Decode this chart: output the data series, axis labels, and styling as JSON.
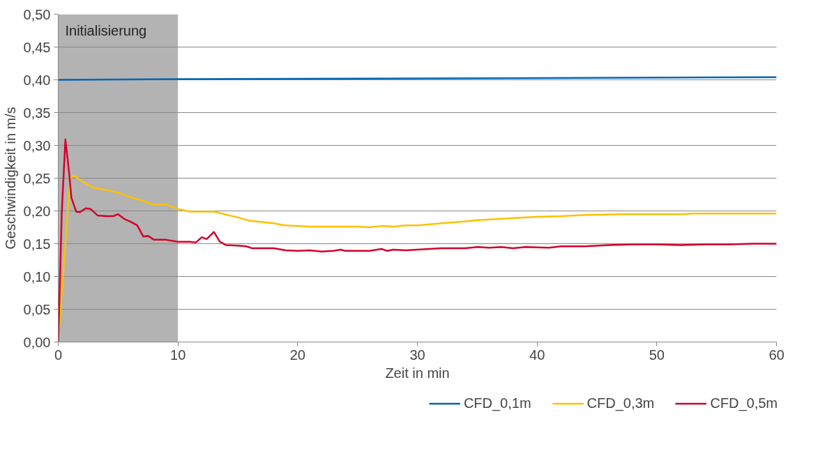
{
  "chart_data": {
    "type": "line",
    "xlabel": "Zeit in min",
    "ylabel": "Geschwindigkeit in m/s",
    "xlim": [
      0,
      60
    ],
    "ylim": [
      0,
      0.5
    ],
    "xticks": [
      0,
      10,
      20,
      30,
      40,
      50,
      60
    ],
    "yticks": [
      {
        "value": 0,
        "label": "0,00"
      },
      {
        "value": 0.05,
        "label": "0,05"
      },
      {
        "value": 0.1,
        "label": "0,10"
      },
      {
        "value": 0.15,
        "label": "0,15"
      },
      {
        "value": 0.2,
        "label": "0,20"
      },
      {
        "value": 0.25,
        "label": "0,25"
      },
      {
        "value": 0.3,
        "label": "0,30"
      },
      {
        "value": 0.35,
        "label": "0,35"
      },
      {
        "value": 0.4,
        "label": "0,40"
      },
      {
        "value": 0.45,
        "label": "0,45"
      },
      {
        "value": 0.5,
        "label": "0,50"
      }
    ],
    "grid": "y",
    "legend": "bottom",
    "line_style": "solid",
    "bands": [
      {
        "axis": "x",
        "from": 0,
        "to": 10,
        "label": "Initialisierung",
        "color": "#b3b3b3"
      }
    ],
    "series": [
      {
        "name": "CFD_0,1m",
        "color": "#0066b3",
        "x": [
          0,
          10,
          30,
          60
        ],
        "values": [
          0.4,
          0.401,
          0.402,
          0.404
        ]
      },
      {
        "name": "CFD_0,3m",
        "color": "#ffc000",
        "x": [
          0,
          0.6,
          1.0,
          1.3,
          2,
          3,
          4,
          5,
          6,
          7,
          8,
          9,
          10,
          11,
          13,
          15,
          16,
          18,
          19,
          21,
          25,
          26,
          27,
          28,
          29,
          30,
          32,
          34,
          35,
          38,
          40,
          42,
          44,
          47,
          52,
          53,
          60
        ],
        "values": [
          0,
          0.15,
          0.25,
          0.254,
          0.245,
          0.235,
          0.232,
          0.228,
          0.221,
          0.216,
          0.209,
          0.21,
          0.203,
          0.199,
          0.199,
          0.19,
          0.185,
          0.181,
          0.178,
          0.176,
          0.176,
          0.175,
          0.177,
          0.176,
          0.178,
          0.178,
          0.181,
          0.184,
          0.186,
          0.189,
          0.191,
          0.192,
          0.194,
          0.195,
          0.195,
          0.196,
          0.196
        ]
      },
      {
        "name": "CFD_0,5m",
        "color": "#d4002a",
        "x": [
          0,
          0.3,
          0.6,
          0.9,
          1.1,
          1.5,
          1.8,
          2.3,
          2.7,
          3.3,
          4,
          4.6,
          5,
          5.5,
          6,
          6.6,
          7.1,
          7.5,
          8,
          9,
          10,
          11,
          11.5,
          12,
          12.4,
          13,
          13.5,
          14,
          15,
          15.7,
          16.2,
          17,
          18,
          19,
          20,
          21,
          22,
          23,
          23.6,
          24,
          25,
          26,
          27,
          27.5,
          28,
          29,
          30,
          32,
          34,
          35,
          36,
          37,
          38,
          39,
          41,
          42,
          44,
          46,
          48,
          50,
          52,
          54,
          56,
          58,
          60
        ],
        "values": [
          0,
          0.2,
          0.309,
          0.26,
          0.22,
          0.199,
          0.198,
          0.204,
          0.203,
          0.193,
          0.192,
          0.192,
          0.195,
          0.188,
          0.184,
          0.178,
          0.161,
          0.162,
          0.156,
          0.156,
          0.153,
          0.153,
          0.152,
          0.16,
          0.157,
          0.168,
          0.153,
          0.148,
          0.147,
          0.146,
          0.143,
          0.143,
          0.143,
          0.14,
          0.139,
          0.14,
          0.138,
          0.139,
          0.141,
          0.139,
          0.139,
          0.139,
          0.142,
          0.139,
          0.141,
          0.14,
          0.141,
          0.143,
          0.143,
          0.145,
          0.144,
          0.145,
          0.143,
          0.145,
          0.144,
          0.146,
          0.146,
          0.148,
          0.149,
          0.149,
          0.148,
          0.149,
          0.149,
          0.15,
          0.15
        ]
      }
    ]
  }
}
